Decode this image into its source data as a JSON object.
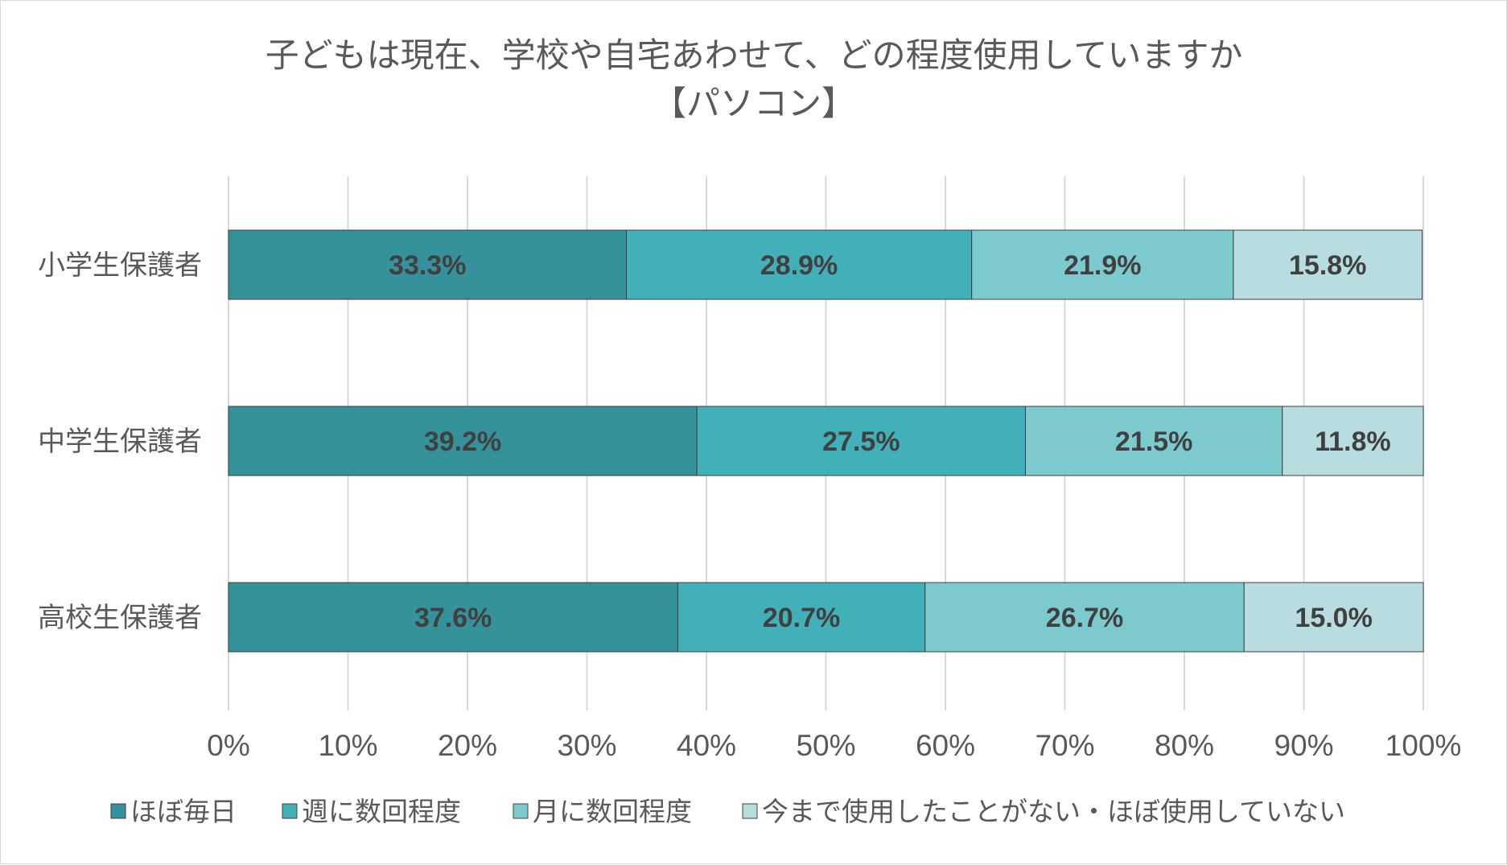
{
  "chart_data": {
    "type": "bar",
    "orientation": "horizontal",
    "stacked": true,
    "title": "子どもは現在、学校や自宅あわせて、どの程度使用していますか",
    "subtitle": "【パソコン】",
    "categories": [
      "小学生保護者",
      "中学生保護者",
      "高校生保護者"
    ],
    "series": [
      {
        "name": "ほぼ毎日",
        "color": "#35929a",
        "values": [
          33.3,
          39.2,
          37.6
        ],
        "labels": [
          "33.3%",
          "39.2%",
          "37.6%"
        ]
      },
      {
        "name": "週に数回程度",
        "color": "#41b0b8",
        "values": [
          28.9,
          27.5,
          20.7
        ],
        "labels": [
          "28.9%",
          "27.5%",
          "20.7%"
        ]
      },
      {
        "name": "月に数回程度",
        "color": "#7ccace",
        "values": [
          21.9,
          21.5,
          26.7
        ],
        "labels": [
          "21.9%",
          "21.5%",
          "26.7%"
        ]
      },
      {
        "name": "今まで使用したことがない・ほぼ使用していない",
        "color": "#b7dde1",
        "values": [
          15.8,
          11.8,
          15.0
        ],
        "labels": [
          "15.8%",
          "11.8%",
          "15.0%"
        ]
      }
    ],
    "xlim": [
      0,
      100
    ],
    "x_ticks": [
      "0%",
      "10%",
      "20%",
      "30%",
      "40%",
      "50%",
      "60%",
      "70%",
      "80%",
      "90%",
      "100%"
    ],
    "grid": true,
    "legend": "bottom",
    "xlabel": "",
    "ylabel": ""
  }
}
